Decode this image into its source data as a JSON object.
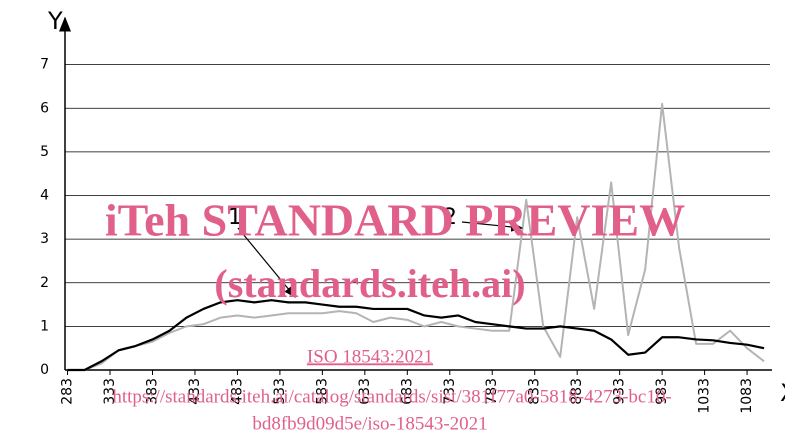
{
  "chart_data": {
    "type": "line",
    "x_label": "X",
    "y_label": "Y",
    "x": [
      283,
      303,
      323,
      343,
      363,
      383,
      403,
      423,
      443,
      463,
      483,
      503,
      523,
      543,
      563,
      583,
      603,
      623,
      643,
      663,
      683,
      703,
      723,
      743,
      763,
      783,
      803,
      823,
      843,
      863,
      883,
      903,
      923,
      943,
      963,
      983,
      1003,
      1023,
      1043,
      1063,
      1083,
      1103
    ],
    "series": [
      {
        "name": "1",
        "color": "#000000",
        "values": [
          0,
          0,
          0.2,
          0.45,
          0.55,
          0.7,
          0.9,
          1.2,
          1.4,
          1.55,
          1.6,
          1.55,
          1.6,
          1.55,
          1.55,
          1.5,
          1.45,
          1.45,
          1.4,
          1.4,
          1.4,
          1.25,
          1.2,
          1.25,
          1.1,
          1.05,
          1.0,
          0.95,
          0.95,
          1.0,
          0.95,
          0.9,
          0.7,
          0.35,
          0.4,
          0.75,
          0.75,
          0.7,
          0.68,
          0.62,
          0.58,
          0.5
        ]
      },
      {
        "name": "2",
        "color": "#b4b4b4",
        "values": [
          0,
          0,
          0.15,
          0.45,
          0.55,
          0.65,
          0.85,
          1.0,
          1.05,
          1.2,
          1.25,
          1.2,
          1.25,
          1.3,
          1.3,
          1.3,
          1.35,
          1.3,
          1.1,
          1.2,
          1.15,
          1.0,
          1.1,
          1.0,
          0.95,
          0.9,
          0.9,
          3.9,
          1.0,
          0.3,
          3.5,
          1.4,
          4.3,
          0.8,
          2.3,
          6.1,
          2.8,
          0.6,
          0.6,
          0.9,
          0.5,
          0.2
        ]
      }
    ],
    "xlim": [
      280,
      1110
    ],
    "ylim": [
      0,
      8
    ],
    "xticks": [
      283,
      333,
      383,
      433,
      483,
      533,
      583,
      633,
      683,
      733,
      783,
      833,
      883,
      933,
      983,
      1033,
      1083
    ],
    "yticks": [
      0,
      1,
      2,
      3,
      4,
      5,
      6,
      7
    ],
    "grid": true,
    "watermark": [
      "iTeh STANDARD PREVIEW",
      "(standards.iteh.ai)",
      "ISO 18543:2021",
      "https://standards.iteh.ai/catalog/standards/sist/381f77a0-5818-4273-bc10-",
      "bd8fb9d09d5e/iso-18543-2021"
    ]
  }
}
